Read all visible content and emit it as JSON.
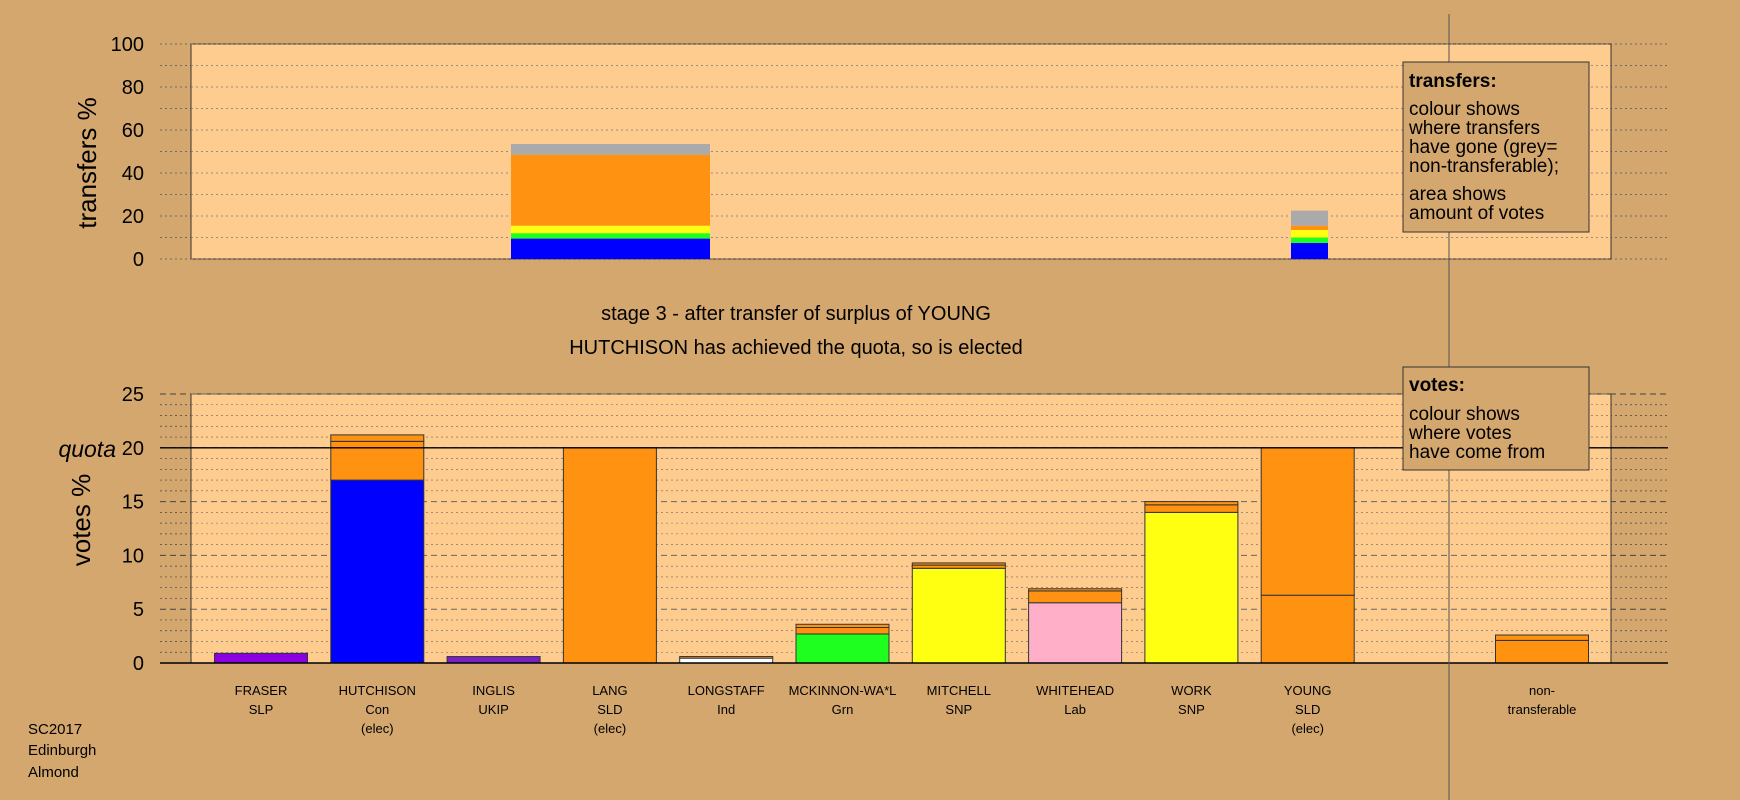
{
  "colors": {
    "background": "#d4a76f",
    "panel": "#ffcc8f",
    "SLP": "#8a00e0",
    "Con": "#0000ff",
    "UKIP": "#7a1fc4",
    "SLD": "#ff9211",
    "Ind": "#ffffff",
    "Grn": "#1fff1f",
    "SNP": "#ffff11",
    "Lab": "#ffb0c8",
    "nontransferable": "#aaaaaa"
  },
  "titles": {
    "stage": "stage 3 - after transfer of surplus of YOUNG",
    "elected": "HUTCHISON has achieved the quota, so is elected"
  },
  "footer": [
    "SC2017",
    "Edinburgh",
    "Almond"
  ],
  "legends": {
    "transfers": {
      "heading": "transfers:",
      "lines": [
        "colour shows",
        "where transfers",
        "have gone (grey=",
        "non-transferable);",
        "area shows",
        "amount of votes"
      ]
    },
    "votes": {
      "heading": "votes:",
      "lines": [
        "colour shows",
        "where votes",
        "have come from"
      ]
    }
  },
  "chart_data": [
    {
      "type": "bar",
      "stacked": true,
      "ylabel": "transfers %",
      "ylim": [
        0,
        100
      ],
      "yticks": [
        0,
        20,
        40,
        60,
        80,
        100
      ],
      "bars": [
        {
          "name": "LANG transfers",
          "segments": [
            {
              "party": "Con",
              "value": 9.5
            },
            {
              "party": "Grn",
              "value": 2.5
            },
            {
              "party": "SNP",
              "value": 3.5
            },
            {
              "party": "SLD",
              "value": 33
            },
            {
              "party": "nontransferable",
              "value": 5
            }
          ]
        },
        {
          "name": "YOUNG transfers",
          "segments": [
            {
              "party": "Con",
              "value": 7.5
            },
            {
              "party": "Grn",
              "value": 2.5
            },
            {
              "party": "SNP",
              "value": 3.5
            },
            {
              "party": "SLD",
              "value": 2
            },
            {
              "party": "nontransferable",
              "value": 7
            }
          ]
        }
      ]
    },
    {
      "type": "bar",
      "stacked": true,
      "ylabel": "votes %",
      "ylim": [
        0,
        25
      ],
      "yticks": [
        0,
        5,
        10,
        15,
        20,
        25
      ],
      "quota": 20,
      "quota_label": "quota",
      "candidates": [
        {
          "name": "FRASER",
          "party": "SLP",
          "note": "",
          "segments": [
            {
              "party": "SLP",
              "value": 0.9
            }
          ]
        },
        {
          "name": "HUTCHISON",
          "party": "Con",
          "note": "(elec)",
          "segments": [
            {
              "party": "Con",
              "value": 17
            },
            {
              "party": "SLD",
              "value": 3.6
            },
            {
              "party": "SLD",
              "value": 0.6
            }
          ]
        },
        {
          "name": "INGLIS",
          "party": "UKIP",
          "note": "",
          "segments": [
            {
              "party": "UKIP",
              "value": 0.6
            }
          ]
        },
        {
          "name": "LANG",
          "party": "SLD",
          "note": "(elec)",
          "segments": [
            {
              "party": "SLD",
              "value": 20
            }
          ]
        },
        {
          "name": "LONGSTAFF",
          "party": "Ind",
          "note": "",
          "segments": [
            {
              "party": "Ind",
              "value": 0.45
            },
            {
              "party": "SLD",
              "value": 0.15
            }
          ]
        },
        {
          "name": "MCKINNON-WA*L",
          "party": "Grn",
          "note": "",
          "segments": [
            {
              "party": "Grn",
              "value": 2.7
            },
            {
              "party": "SLD",
              "value": 0.6
            },
            {
              "party": "SLD",
              "value": 0.3
            }
          ]
        },
        {
          "name": "MITCHELL",
          "party": "SNP",
          "note": "",
          "segments": [
            {
              "party": "SNP",
              "value": 8.8
            },
            {
              "party": "SLD",
              "value": 0.3
            },
            {
              "party": "SLD",
              "value": 0.2
            }
          ]
        },
        {
          "name": "WHITEHEAD",
          "party": "Lab",
          "note": "",
          "segments": [
            {
              "party": "Lab",
              "value": 5.6
            },
            {
              "party": "SLD",
              "value": 1.1
            },
            {
              "party": "SLD",
              "value": 0.2
            }
          ]
        },
        {
          "name": "WORK",
          "party": "SNP",
          "note": "",
          "segments": [
            {
              "party": "SNP",
              "value": 14
            },
            {
              "party": "SLD",
              "value": 0.7
            },
            {
              "party": "SLD",
              "value": 0.3
            }
          ]
        },
        {
          "name": "YOUNG",
          "party": "SLD",
          "note": "(elec)",
          "segments": [
            {
              "party": "SLD",
              "value": 6.3
            },
            {
              "party": "SLD",
              "value": 13.7
            }
          ]
        },
        {
          "name": "non-",
          "party": "transferable",
          "note": "",
          "segments": [
            {
              "party": "SLD",
              "value": 2.1
            },
            {
              "party": "SLD",
              "value": 0.5
            }
          ]
        }
      ]
    }
  ]
}
